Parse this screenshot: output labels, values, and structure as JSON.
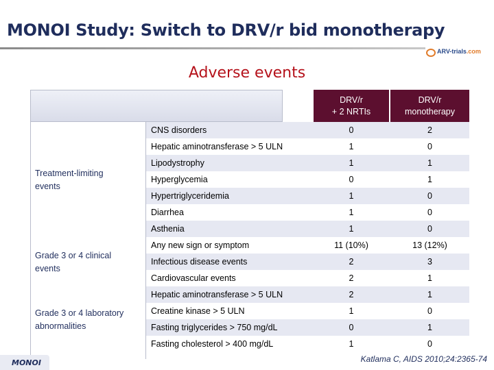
{
  "slide": {
    "title": "MONOI Study: Switch to DRV/r bid monotherapy",
    "subtitle": "Adverse events",
    "logo_main": "ARV-trials",
    "logo_tld": ".com",
    "footer_badge": "MONOI",
    "citation": "Katlama C, AIDS 2010;24:2365-74"
  },
  "table": {
    "col1_header": [
      "DRV/r",
      "+ 2 NRTIs"
    ],
    "col2_header": [
      "DRV/r",
      "monotherapy"
    ],
    "groups": [
      {
        "label_lines": [
          "Treatment-limiting",
          "events"
        ]
      },
      {
        "label_lines": [
          "Grade 3 or 4 clinical",
          "events"
        ]
      },
      {
        "label_lines": [
          "Grade 3 or 4 laboratory",
          "abnormalities"
        ]
      }
    ],
    "rows": [
      {
        "label": "CNS disorders",
        "v1": "0",
        "v2": "2"
      },
      {
        "label": "Hepatic aminotransferase > 5 ULN",
        "v1": "1",
        "v2": "0"
      },
      {
        "label": "Lipodystrophy",
        "v1": "1",
        "v2": "1"
      },
      {
        "label": "Hyperglycemia",
        "v1": "0",
        "v2": "1"
      },
      {
        "label": "Hypertriglyceridemia",
        "v1": "1",
        "v2": "0"
      },
      {
        "label": "Diarrhea",
        "v1": "1",
        "v2": "0"
      },
      {
        "label": "Asthenia",
        "v1": "1",
        "v2": "0"
      },
      {
        "label": "Any new sign or symptom",
        "v1": "11 (10%)",
        "v2": "13 (12%)"
      },
      {
        "label": "Infectious disease events",
        "v1": "2",
        "v2": "3"
      },
      {
        "label": "Cardiovascular events",
        "v1": "2",
        "v2": "1"
      },
      {
        "label": "Hepatic aminotransferase > 5 ULN",
        "v1": "2",
        "v2": "1"
      },
      {
        "label": "Creatine kinase > 5 ULN",
        "v1": "1",
        "v2": "0"
      },
      {
        "label": "Fasting triglycerides > 750 mg/dL",
        "v1": "0",
        "v2": "1"
      },
      {
        "label": "Fasting cholesterol > 400 mg/dL",
        "v1": "1",
        "v2": "0"
      }
    ]
  }
}
